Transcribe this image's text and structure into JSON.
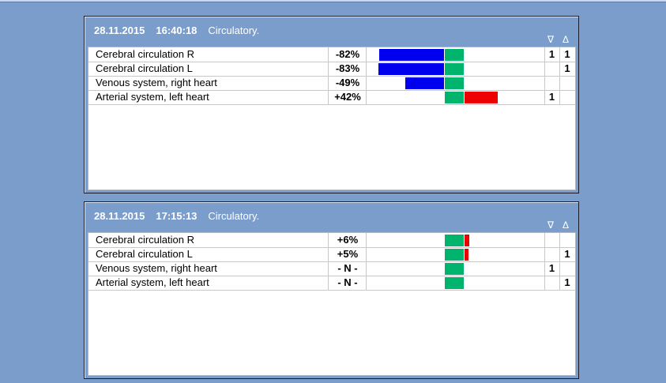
{
  "colors": {
    "negative": "#0000ee",
    "neutral": "#00b46e",
    "positive": "#ee0000"
  },
  "column_headers": {
    "down": "∇",
    "up": "Δ"
  },
  "panels": [
    {
      "date": "28.11.2015",
      "time": "16:40:18",
      "label": "Circulatory.",
      "rows": [
        {
          "name": "Cerebral circulation R",
          "value": "-82%",
          "pct": -82,
          "down": "1",
          "up": "1"
        },
        {
          "name": "Cerebral circulation L",
          "value": "-83%",
          "pct": -83,
          "down": "",
          "up": "1"
        },
        {
          "name": "Venous system, right heart",
          "value": "-49%",
          "pct": -49,
          "down": "",
          "up": ""
        },
        {
          "name": "Arterial system, left heart",
          "value": "+42%",
          "pct": 42,
          "down": "1",
          "up": ""
        }
      ]
    },
    {
      "date": "28.11.2015",
      "time": "17:15:13",
      "label": "Circulatory.",
      "rows": [
        {
          "name": "Cerebral circulation R",
          "value": "+6%",
          "pct": 6,
          "down": "",
          "up": ""
        },
        {
          "name": "Cerebral circulation L",
          "value": "+5%",
          "pct": 5,
          "down": "",
          "up": "1"
        },
        {
          "name": "Venous system, right heart",
          "value": "- N -",
          "pct": 0,
          "down": "1",
          "up": ""
        },
        {
          "name": "Arterial system, left heart",
          "value": "- N -",
          "pct": 0,
          "down": "",
          "up": "1"
        }
      ]
    }
  ]
}
